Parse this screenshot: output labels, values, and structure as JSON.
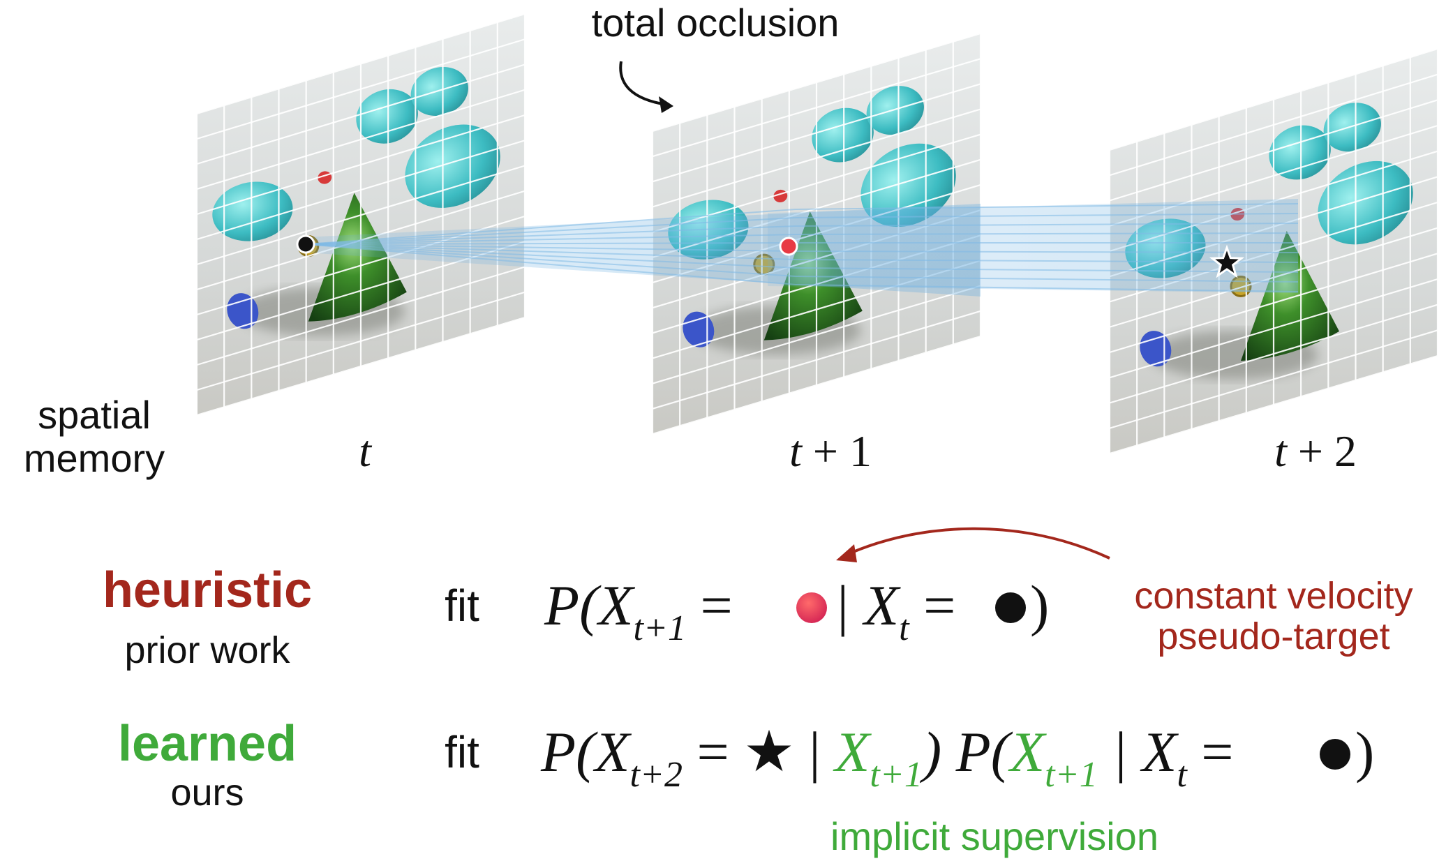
{
  "annotations": {
    "occlusion": "total occlusion",
    "memory_line1": "spatial",
    "memory_line2": "memory",
    "velocity_line1": "constant velocity",
    "velocity_line2": "pseudo-target",
    "implicit": "implicit supervision"
  },
  "frames": [
    {
      "label_main": "t",
      "label_rest": ""
    },
    {
      "label_main": "t",
      "label_rest": " + 1"
    },
    {
      "label_main": "t",
      "label_rest": " + 2"
    }
  ],
  "rows": {
    "heuristic": {
      "title": "heuristic",
      "subtitle": "prior work",
      "fit": "fit",
      "eq": {
        "p1": "P(X",
        "s1": "t+1",
        "eqsign1": " = ",
        "bar": " | X",
        "s2": "t",
        "eqsign2": " = ",
        "close": ")"
      }
    },
    "learned": {
      "title": "learned",
      "subtitle": "ours",
      "fit": "fit",
      "eq": {
        "p1": "P(X",
        "s1": "t+2",
        "eqsign1": " = ",
        "star": "★",
        "bar1": " | ",
        "g1": "X",
        "gs1": "t+1",
        "close1": ") P(",
        "g2": "X",
        "gs2": "t+1",
        "bar2": " | X",
        "s3": "t",
        "eqsign2": " = ",
        "close2": ")"
      }
    }
  },
  "colors": {
    "heuristic": "#a3271c",
    "learned": "#3faa3a",
    "track": "#6aaee0",
    "red_point": "#e83a44",
    "grid": "#ffffff",
    "text": "#111111"
  }
}
